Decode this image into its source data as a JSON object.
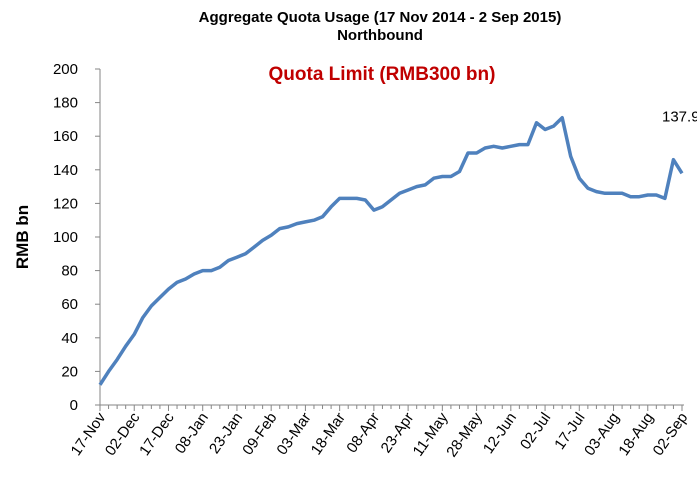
{
  "chart_data": {
    "type": "line",
    "title": "Aggregate Quota Usage (17 Nov 2014 - 2 Sep 2015)",
    "subtitle": "Northbound",
    "annotation": "Quota Limit (RMB300 bn)",
    "annotation_color": "#c00000",
    "y_label": "RMB bn",
    "color": "#4f81bd",
    "categories": [
      "17-Nov",
      null,
      null,
      null,
      "02-Dec",
      null,
      null,
      null,
      "17-Dec",
      null,
      null,
      null,
      "08-Jan",
      null,
      null,
      null,
      "23-Jan",
      null,
      null,
      null,
      "09-Feb",
      null,
      null,
      null,
      "03-Mar",
      null,
      null,
      null,
      "18-Mar",
      null,
      null,
      null,
      "08-Apr",
      null,
      null,
      null,
      "23-Apr",
      null,
      null,
      null,
      "11-May",
      null,
      null,
      null,
      "28-May",
      null,
      null,
      null,
      "12-Jun",
      null,
      null,
      null,
      "02-Jul",
      null,
      null,
      null,
      "17-Jul",
      null,
      null,
      null,
      "03-Aug",
      null,
      null,
      null,
      "18-Aug",
      null,
      null,
      null,
      "02-Sep"
    ],
    "values": [
      12,
      20,
      27,
      35,
      42,
      52,
      59,
      64,
      69,
      73,
      75,
      78,
      80,
      80,
      82,
      86,
      88,
      90,
      94,
      98,
      101,
      105,
      106,
      108,
      109,
      110,
      112,
      118,
      123,
      123,
      123,
      122,
      116,
      118,
      122,
      126,
      128,
      130,
      131,
      135,
      136,
      136,
      139,
      150,
      150,
      153,
      154,
      153,
      154,
      155,
      155,
      168,
      164,
      166,
      171,
      148,
      135,
      129,
      127,
      126,
      126,
      126,
      124,
      124,
      125,
      125,
      123,
      146,
      137.9
    ],
    "ylim": [
      0,
      200
    ],
    "yticks": [
      0,
      20,
      40,
      60,
      80,
      100,
      120,
      140,
      160,
      180,
      200
    ]
  }
}
